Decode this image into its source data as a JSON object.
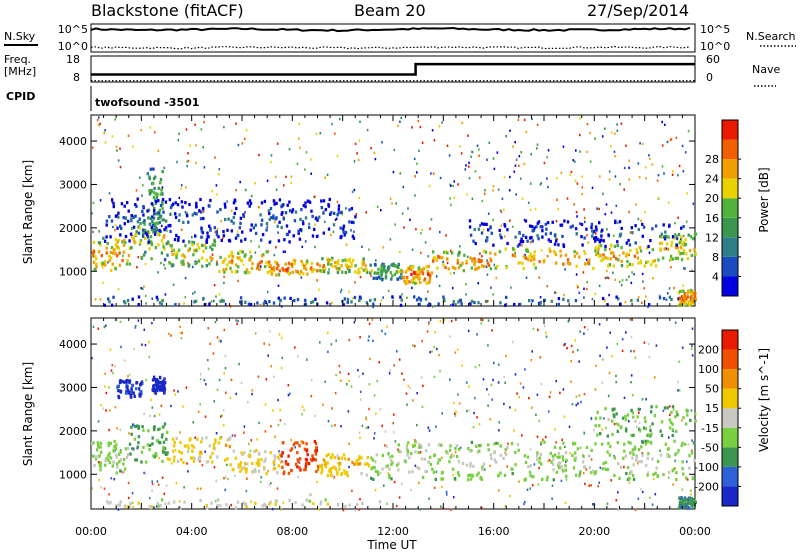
{
  "header": {
    "station": "Blackstone (fitACF)",
    "beam": "Beam 20",
    "date": "27/Sep/2014"
  },
  "colors": {
    "frame": "#000000",
    "background": "#ffffff",
    "ground_scatter": "#c8c8c0"
  },
  "chart_data": [
    {
      "type": "line",
      "panel": "noise",
      "left_label": "N.Sky",
      "right_label": "N.Search",
      "left_ticks": [
        "10^5",
        "10^0"
      ],
      "right_ticks": [
        "10^5",
        "10^0"
      ],
      "series": [
        {
          "name": "N.Sky",
          "style": "solid",
          "x": [
            0,
            2,
            4,
            6,
            8,
            10,
            12,
            14,
            16,
            18,
            20,
            22,
            24
          ],
          "level": [
            0.82,
            0.78,
            0.8,
            0.83,
            0.79,
            0.77,
            0.81,
            0.84,
            0.8,
            0.78,
            0.79,
            0.82,
            0.84
          ]
        },
        {
          "name": "N.Search",
          "style": "dotted",
          "x": [
            0,
            2,
            4,
            6,
            8,
            10,
            12,
            14,
            16,
            18,
            20,
            22,
            24
          ],
          "level": [
            0.16,
            0.15,
            0.14,
            0.17,
            0.16,
            0.14,
            0.15,
            0.18,
            0.16,
            0.15,
            0.17,
            0.16,
            0.18
          ]
        }
      ]
    },
    {
      "type": "line",
      "panel": "frequency",
      "left_label": "Freq.",
      "left_unit": "[MHz]",
      "right_label": "Nave",
      "left_ticks": [
        "18",
        "8"
      ],
      "right_ticks": [
        "60",
        "0"
      ],
      "left_range": [
        8,
        18
      ],
      "right_range": [
        0,
        60
      ],
      "series": [
        {
          "name": "Freq.",
          "style": "solid",
          "x": [
            0,
            12.9,
            12.9,
            24
          ],
          "y": [
            10.9,
            10.9,
            14.9,
            14.9
          ]
        },
        {
          "name": "Nave",
          "style": "dotted",
          "x": [
            0,
            24
          ],
          "y": [
            8.5,
            8.5
          ]
        }
      ]
    },
    {
      "type": "table",
      "panel": "cpid",
      "label": "CPID",
      "entries": [
        {
          "x": 0,
          "text": "twofsound  -3501"
        }
      ]
    },
    {
      "type": "heatmap",
      "panel": "power",
      "ylabel": "Slant Range [km]",
      "xlabel": "",
      "xlim": [
        0,
        24
      ],
      "ylim": [
        200,
        4600
      ],
      "yticks": [
        1000,
        2000,
        3000,
        4000
      ],
      "colorbar": {
        "label": "Power [dB]",
        "ticks": [
          "4",
          "8",
          "12",
          "16",
          "20",
          "24",
          "28"
        ],
        "colors": [
          "#0000e0",
          "#1a4cc0",
          "#2e7e8a",
          "#3c9650",
          "#50b43c",
          "#e8d200",
          "#f0a000",
          "#f06000",
          "#e81a00"
        ]
      },
      "bands": [
        {
          "x0": 0,
          "x1": 1.5,
          "y0": 1050,
          "y1": 1800,
          "level": 0.75
        },
        {
          "x0": 1.5,
          "x1": 3,
          "y0": 1300,
          "y1": 2300,
          "level": 0.6
        },
        {
          "x0": 3,
          "x1": 5,
          "y0": 1150,
          "y1": 1750,
          "level": 0.65
        },
        {
          "x0": 5,
          "x1": 7,
          "y0": 1000,
          "y1": 1500,
          "level": 0.75
        },
        {
          "x0": 7,
          "x1": 9,
          "y0": 950,
          "y1": 1300,
          "level": 0.85
        },
        {
          "x0": 9,
          "x1": 11,
          "y0": 1000,
          "y1": 1350,
          "level": 0.7
        },
        {
          "x0": 11,
          "x1": 12.3,
          "y0": 850,
          "y1": 1200,
          "level": 0.5
        },
        {
          "x0": 12.3,
          "x1": 13.5,
          "y0": 750,
          "y1": 1150,
          "level": 0.85
        },
        {
          "x0": 13.5,
          "x1": 16,
          "y0": 1050,
          "y1": 1500,
          "level": 0.8
        },
        {
          "x0": 16,
          "x1": 20,
          "y0": 1100,
          "y1": 1550,
          "level": 0.78
        },
        {
          "x0": 20,
          "x1": 22.5,
          "y0": 1150,
          "y1": 1650,
          "level": 0.75
        },
        {
          "x0": 22.5,
          "x1": 24,
          "y0": 1300,
          "y1": 1900,
          "level": 0.7
        },
        {
          "x0": 2.2,
          "x1": 2.8,
          "y0": 1900,
          "y1": 3400,
          "level": 0.5
        },
        {
          "x0": 0.5,
          "x1": 24,
          "y0": 250,
          "y1": 450,
          "level": 0.3
        },
        {
          "x0": 0.5,
          "x1": 10.5,
          "y0": 1700,
          "y1": 2700,
          "level": 0.2
        },
        {
          "x0": 15,
          "x1": 23.5,
          "y0": 1600,
          "y1": 2200,
          "level": 0.2
        },
        {
          "x0": 23.3,
          "x1": 24,
          "y0": 250,
          "y1": 600,
          "level": 0.85
        }
      ]
    },
    {
      "type": "heatmap",
      "panel": "velocity",
      "ylabel": "Slant Range [km]",
      "xlabel": "Time UT",
      "xlim": [
        0,
        24
      ],
      "ylim": [
        200,
        4600
      ],
      "yticks": [
        1000,
        2000,
        3000,
        4000
      ],
      "xticks": [
        "00:00",
        "04:00",
        "08:00",
        "12:00",
        "16:00",
        "20:00",
        "00:00"
      ],
      "colorbar": {
        "label": "Velocity [m s^-1]",
        "ticks": [
          "200",
          "100",
          "50",
          "15",
          "-15",
          "-50",
          "-100",
          "-200"
        ],
        "colors": [
          "#1a28c8",
          "#2e60d8",
          "#3c9650",
          "#78d040",
          "#c8c8c0",
          "#f0c800",
          "#f09000",
          "#f05000",
          "#e81a00"
        ]
      },
      "bands": [
        {
          "x0": 0,
          "x1": 1.5,
          "y0": 1050,
          "y1": 1800,
          "level": 0.45
        },
        {
          "x0": 1.5,
          "x1": 3,
          "y0": 1300,
          "y1": 2200,
          "level": 0.35
        },
        {
          "x0": 3,
          "x1": 5.5,
          "y0": 1300,
          "y1": 1900,
          "level": 0.62
        },
        {
          "x0": 5.5,
          "x1": 7.5,
          "y0": 1050,
          "y1": 1600,
          "level": 0.6
        },
        {
          "x0": 7.5,
          "x1": 9,
          "y0": 1050,
          "y1": 1800,
          "level": 0.9
        },
        {
          "x0": 9,
          "x1": 11,
          "y0": 1000,
          "y1": 1500,
          "level": 0.65
        },
        {
          "x0": 11,
          "x1": 24,
          "y0": 900,
          "y1": 1800,
          "level": 0.45
        },
        {
          "x0": 2.4,
          "x1": 2.9,
          "y0": 2900,
          "y1": 3300,
          "level": 0.02
        },
        {
          "x0": 1,
          "x1": 2,
          "y0": 2800,
          "y1": 3200,
          "level": 0.1
        },
        {
          "x0": 0.5,
          "x1": 12,
          "y0": 250,
          "y1": 450,
          "level": 0.55
        },
        {
          "x0": 20,
          "x1": 24,
          "y0": 1900,
          "y1": 2600,
          "level": 0.4
        },
        {
          "x0": 23.3,
          "x1": 24,
          "y0": 250,
          "y1": 500,
          "level": 0.3
        }
      ]
    }
  ]
}
